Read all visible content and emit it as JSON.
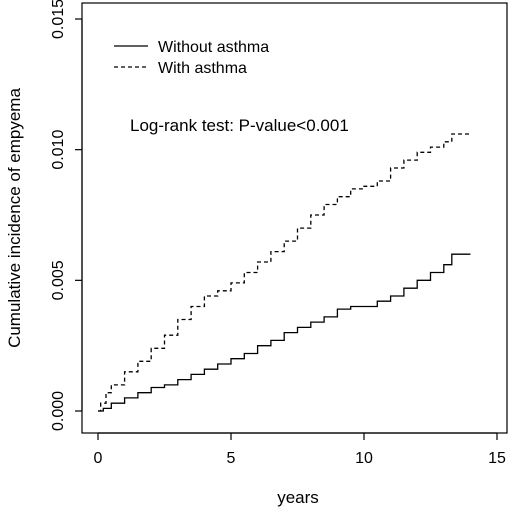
{
  "chart_data": {
    "type": "line",
    "title": "",
    "xlabel": "years",
    "ylabel": "Cumulative incidence of empyema",
    "xlim": [
      0,
      15
    ],
    "ylim": [
      0,
      0.015
    ],
    "x_ticks": [
      "0",
      "5",
      "10",
      "15"
    ],
    "y_ticks": [
      "0.000",
      "0.005",
      "0.010",
      "0.015"
    ],
    "grid": false,
    "legend_position": "top-left",
    "annotation": "Log-rank test: P-value<0.001",
    "series": [
      {
        "name": "Without asthma",
        "line_style": "solid",
        "x": [
          0,
          0.2,
          0.5,
          1,
          1.5,
          2,
          2.5,
          3,
          3.5,
          4,
          4.5,
          5,
          5.5,
          6,
          6.5,
          7,
          7.5,
          8,
          8.5,
          9,
          9.5,
          10,
          10.5,
          11,
          11.5,
          12,
          12.5,
          13,
          13.3,
          14
        ],
        "y": [
          0,
          0.0001,
          0.0003,
          0.0005,
          0.0007,
          0.0009,
          0.001,
          0.0012,
          0.0014,
          0.0016,
          0.0018,
          0.002,
          0.0022,
          0.0025,
          0.0027,
          0.003,
          0.0032,
          0.0034,
          0.0036,
          0.0039,
          0.004,
          0.004,
          0.0042,
          0.0044,
          0.0047,
          0.005,
          0.0053,
          0.0056,
          0.006,
          0.006
        ]
      },
      {
        "name": "With asthma",
        "line_style": "dashed",
        "x": [
          0,
          0.1,
          0.3,
          0.5,
          1,
          1.5,
          2,
          2.5,
          3,
          3.5,
          4,
          4.5,
          5,
          5.5,
          6,
          6.5,
          7,
          7.5,
          8,
          8.5,
          9,
          9.5,
          10,
          10.5,
          11,
          11.5,
          12,
          12.5,
          13,
          13.3,
          14
        ],
        "y": [
          0,
          0.0003,
          0.0007,
          0.001,
          0.0015,
          0.0019,
          0.0024,
          0.0029,
          0.0035,
          0.004,
          0.0044,
          0.0046,
          0.0049,
          0.0053,
          0.0057,
          0.0061,
          0.0065,
          0.007,
          0.0075,
          0.0079,
          0.0082,
          0.0085,
          0.0086,
          0.0088,
          0.0093,
          0.0096,
          0.0099,
          0.0101,
          0.0103,
          0.0106,
          0.0106
        ]
      }
    ]
  }
}
